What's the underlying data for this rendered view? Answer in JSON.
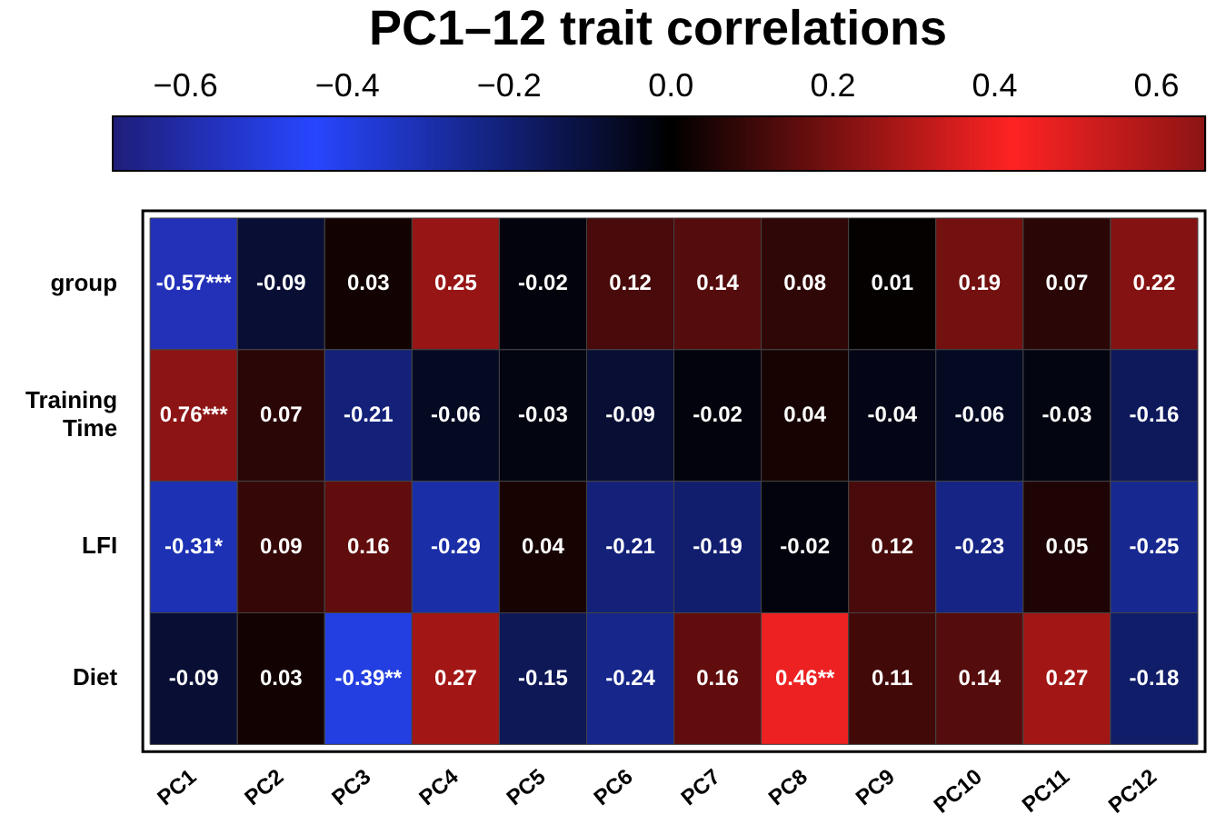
{
  "chart_data": {
    "type": "heatmap",
    "title": "PC1–12 trait correlations",
    "categories": [
      "PC1",
      "PC2",
      "PC3",
      "PC4",
      "PC5",
      "PC6",
      "PC7",
      "PC8",
      "PC9",
      "PC10",
      "PC11",
      "PC12"
    ],
    "y_categories": [
      "group",
      "Training Time",
      "LFI",
      "Diet"
    ],
    "cells": [
      [
        -0.57,
        -0.09,
        0.03,
        0.25,
        -0.02,
        0.12,
        0.14,
        0.08,
        0.01,
        0.19,
        0.07,
        0.22
      ],
      [
        0.76,
        0.07,
        -0.21,
        -0.06,
        -0.03,
        -0.09,
        -0.02,
        0.04,
        -0.04,
        -0.06,
        -0.03,
        -0.16
      ],
      [
        -0.31,
        0.09,
        0.16,
        -0.29,
        0.04,
        -0.21,
        -0.19,
        -0.02,
        0.12,
        -0.23,
        0.05,
        -0.25
      ],
      [
        -0.09,
        0.03,
        -0.39,
        0.27,
        -0.15,
        -0.24,
        0.16,
        0.46,
        0.11,
        0.14,
        0.27,
        -0.18
      ]
    ],
    "cell_labels": [
      [
        "-0.57***",
        "-0.09",
        "0.03",
        "0.25",
        "-0.02",
        "0.12",
        "0.14",
        "0.08",
        "0.01",
        "0.19",
        "0.07",
        "0.22"
      ],
      [
        "0.76***",
        "0.07",
        "-0.21",
        "-0.06",
        "-0.03",
        "-0.09",
        "-0.02",
        "0.04",
        "-0.04",
        "-0.06",
        "-0.03",
        "-0.16"
      ],
      [
        "-0.31*",
        "0.09",
        "0.16",
        "-0.29",
        "0.04",
        "-0.21",
        "-0.19",
        "-0.02",
        "0.12",
        "-0.23",
        "0.05",
        "-0.25"
      ],
      [
        "-0.09",
        "0.03",
        "-0.39**",
        "0.27",
        "-0.15",
        "-0.24",
        "0.16",
        "0.46**",
        "0.11",
        "0.14",
        "0.27",
        "-0.18"
      ]
    ],
    "clim": [
      -0.69,
      0.66
    ],
    "cticks": [
      {
        "value": -0.6,
        "label": "−0.6"
      },
      {
        "value": -0.4,
        "label": "−0.4"
      },
      {
        "value": -0.2,
        "label": "−0.2"
      },
      {
        "value": 0,
        "label": "0.0"
      },
      {
        "value": 0.2,
        "label": "0.2"
      },
      {
        "value": 0.4,
        "label": "0.4"
      },
      {
        "value": 0.6,
        "label": "0.6"
      }
    ]
  }
}
